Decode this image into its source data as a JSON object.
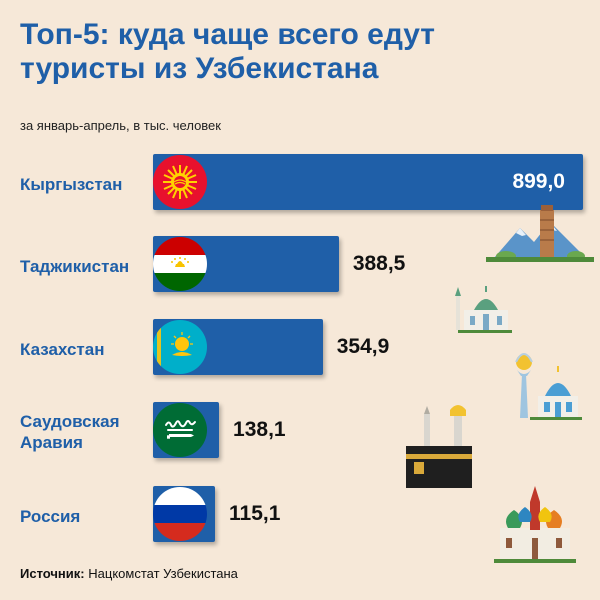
{
  "title_line1": "Топ-5: куда чаще всего едут",
  "title_line2": "туристы из Узбекистана",
  "subtitle": "за январь-апрель, в тыс. человек",
  "source_label": "Источник:",
  "source_text": "Нацкомстат Узбекистана",
  "colors": {
    "bar": "#1f5fa8",
    "background": "#f6e8d8",
    "title": "#1f5fa8"
  },
  "chart_data": {
    "type": "bar",
    "orientation": "horizontal",
    "title": "Топ-5: куда чаще всего едут туристы из Узбекистана",
    "categories": [
      "Кыргызстан",
      "Таджикистан",
      "Казахстан",
      "Саудовская Аравия",
      "Россия"
    ],
    "values": [
      899.0,
      388.5,
      354.9,
      138.1,
      115.1
    ],
    "value_labels": [
      "899,0",
      "388,5",
      "354,9",
      "138,1",
      "115,1"
    ],
    "unit": "тыс. человек",
    "grid": false
  },
  "flags": [
    "kyrgyzstan-flag-icon",
    "tajikistan-flag-icon",
    "kazakhstan-flag-icon",
    "saudi-arabia-flag-icon",
    "russia-flag-icon"
  ],
  "illustrations": [
    "kyrgyz-tower-mountains-icon",
    "tajik-mosque-icon",
    "astana-baiterek-icon",
    "kaaba-icon",
    "st-basils-cathedral-icon"
  ]
}
